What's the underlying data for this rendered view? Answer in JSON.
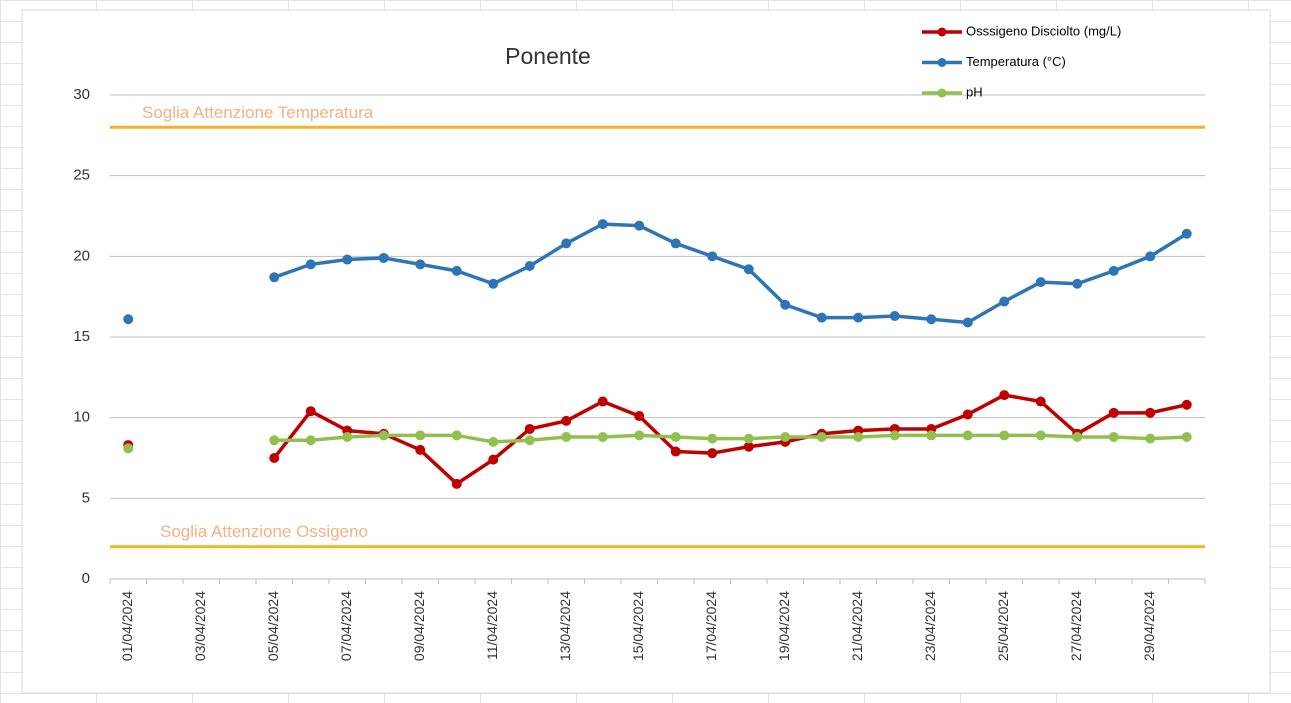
{
  "chart_data": {
    "type": "line",
    "title": "Ponente",
    "categories": [
      "01/04/2024",
      null,
      "03/04/2024",
      null,
      "05/04/2024",
      null,
      "07/04/2024",
      null,
      "09/04/2024",
      null,
      "11/04/2024",
      null,
      "13/04/2024",
      null,
      "15/04/2024",
      null,
      "17/04/2024",
      null,
      "19/04/2024",
      null,
      "21/04/2024",
      null,
      "23/04/2024",
      null,
      "25/04/2024",
      null,
      "27/04/2024",
      null,
      "29/04/2024",
      null
    ],
    "series": [
      {
        "name": "Osssigeno Disciolto (mg/L)",
        "color": "#c00000",
        "values": [
          8.3,
          null,
          null,
          null,
          7.5,
          10.4,
          9.2,
          9.0,
          8.0,
          5.9,
          7.4,
          9.3,
          9.8,
          11.0,
          10.1,
          7.9,
          7.8,
          8.2,
          8.5,
          9.0,
          9.2,
          9.3,
          9.3,
          10.2,
          11.4,
          11.0,
          9.0,
          10.3,
          10.3,
          10.8
        ]
      },
      {
        "name": "Temperatura (°C)",
        "color": "#2e75b6",
        "values": [
          16.1,
          null,
          null,
          null,
          18.7,
          19.5,
          19.8,
          19.9,
          19.5,
          19.1,
          18.3,
          19.4,
          20.8,
          22.0,
          21.9,
          20.8,
          20.0,
          19.2,
          17.0,
          16.2,
          16.2,
          16.3,
          16.1,
          15.9,
          17.2,
          18.4,
          18.3,
          19.1,
          20.0,
          21.4
        ]
      },
      {
        "name": "pH",
        "color": "#92c050",
        "values": [
          8.1,
          null,
          null,
          null,
          8.6,
          8.6,
          8.8,
          8.9,
          8.9,
          8.9,
          8.5,
          8.6,
          8.8,
          8.8,
          8.9,
          8.8,
          8.7,
          8.7,
          8.8,
          8.8,
          8.8,
          8.9,
          8.9,
          8.9,
          8.9,
          8.9,
          8.8,
          8.8,
          8.7,
          8.8
        ]
      }
    ],
    "reference_lines": [
      {
        "label": "Soglia Attenzione Temperatura",
        "value": 28,
        "color": "#f5b324"
      },
      {
        "label": "Soglia Attenzione Ossigeno",
        "value": 2,
        "color": "#f5b324"
      }
    ],
    "ylim": [
      0,
      30
    ],
    "yticks": [
      0,
      5,
      10,
      15,
      20,
      25,
      30
    ],
    "grid": true,
    "legend": "top-right"
  }
}
